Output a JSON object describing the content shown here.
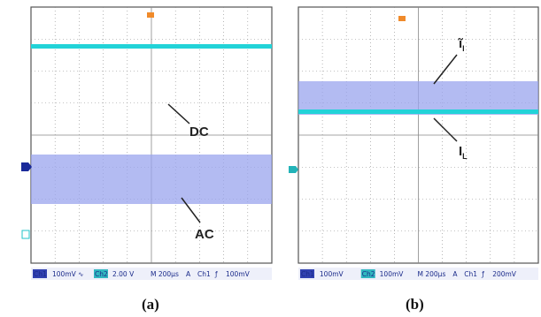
{
  "panels": [
    {
      "caption": "(a)",
      "labels": [
        "DC",
        "AC"
      ],
      "status": [
        "Ch1",
        "100mV ∿",
        "Ch2",
        "2.00 V",
        "M 200µs",
        "A",
        "Ch1",
        "ƒ",
        "100mV"
      ]
    },
    {
      "caption": "(b)",
      "labels": [
        "ĩ",
        "l",
        "I",
        "L"
      ],
      "status": [
        "Ch1",
        "100mV",
        "Ch2",
        "100mV",
        "M 200µs",
        "A",
        "Ch1",
        "ƒ",
        "200mV"
      ]
    }
  ]
}
